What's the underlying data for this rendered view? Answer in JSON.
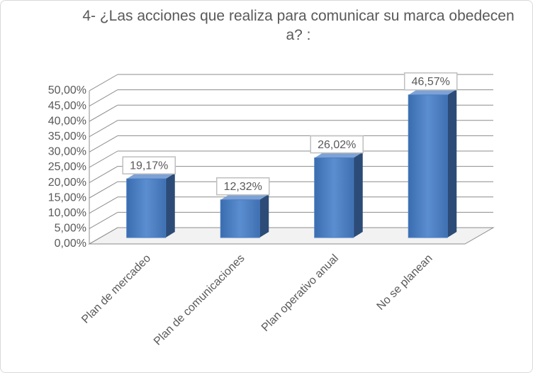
{
  "chart_data": {
    "type": "bar3d",
    "title": "4- ¿Las acciones que realiza para comunicar su marca obedecen a? :",
    "categories": [
      "Plan de mercadeo",
      "Plan de comunicaciones",
      "Plan operativo anual",
      "No se planean"
    ],
    "values": [
      19.17,
      12.32,
      26.02,
      46.57
    ],
    "value_labels": [
      "19,17%",
      "12,32%",
      "26,02%",
      "46,57%"
    ],
    "color": "#4a7cc0",
    "ylim": [
      0,
      50
    ],
    "yticks": [
      {
        "value": 0,
        "label": "0,00%"
      },
      {
        "value": 5,
        "label": "5,00%"
      },
      {
        "value": 10,
        "label": "10,00%"
      },
      {
        "value": 15,
        "label": "15,00%"
      },
      {
        "value": 20,
        "label": "20,00%"
      },
      {
        "value": 25,
        "label": "25,00%"
      },
      {
        "value": 30,
        "label": "30,00%"
      },
      {
        "value": 35,
        "label": "35,00%"
      },
      {
        "value": 40,
        "label": "40,00%"
      },
      {
        "value": 45,
        "label": "45,00%"
      },
      {
        "value": 50,
        "label": "50,00%"
      }
    ],
    "grid": true
  }
}
